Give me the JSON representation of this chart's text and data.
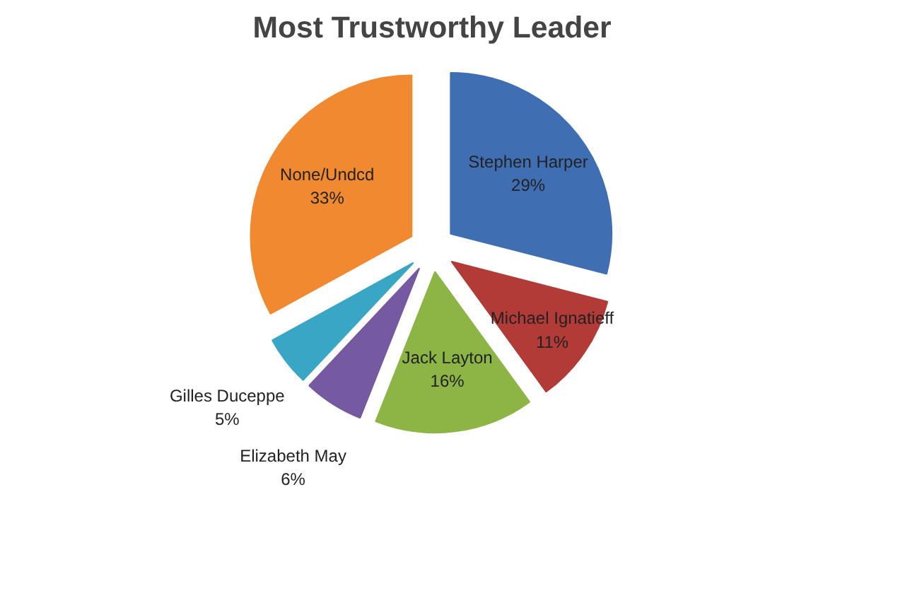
{
  "chart_data": {
    "type": "pie",
    "title": "Most Trustworthy Leader",
    "categories": [
      "Stephen Harper",
      "Michael Ignatieff",
      "Jack Layton",
      "Elizabeth May",
      "Gilles Duceppe",
      "None/Undcd"
    ],
    "values": [
      29,
      11,
      16,
      6,
      5,
      33
    ],
    "value_labels": [
      "29%",
      "11%",
      "16%",
      "6%",
      "5%",
      "33%"
    ],
    "colors": [
      "#3f6fb2",
      "#b23b37",
      "#8cb545",
      "#7559a1",
      "#3aa6c6",
      "#f0892f"
    ]
  }
}
